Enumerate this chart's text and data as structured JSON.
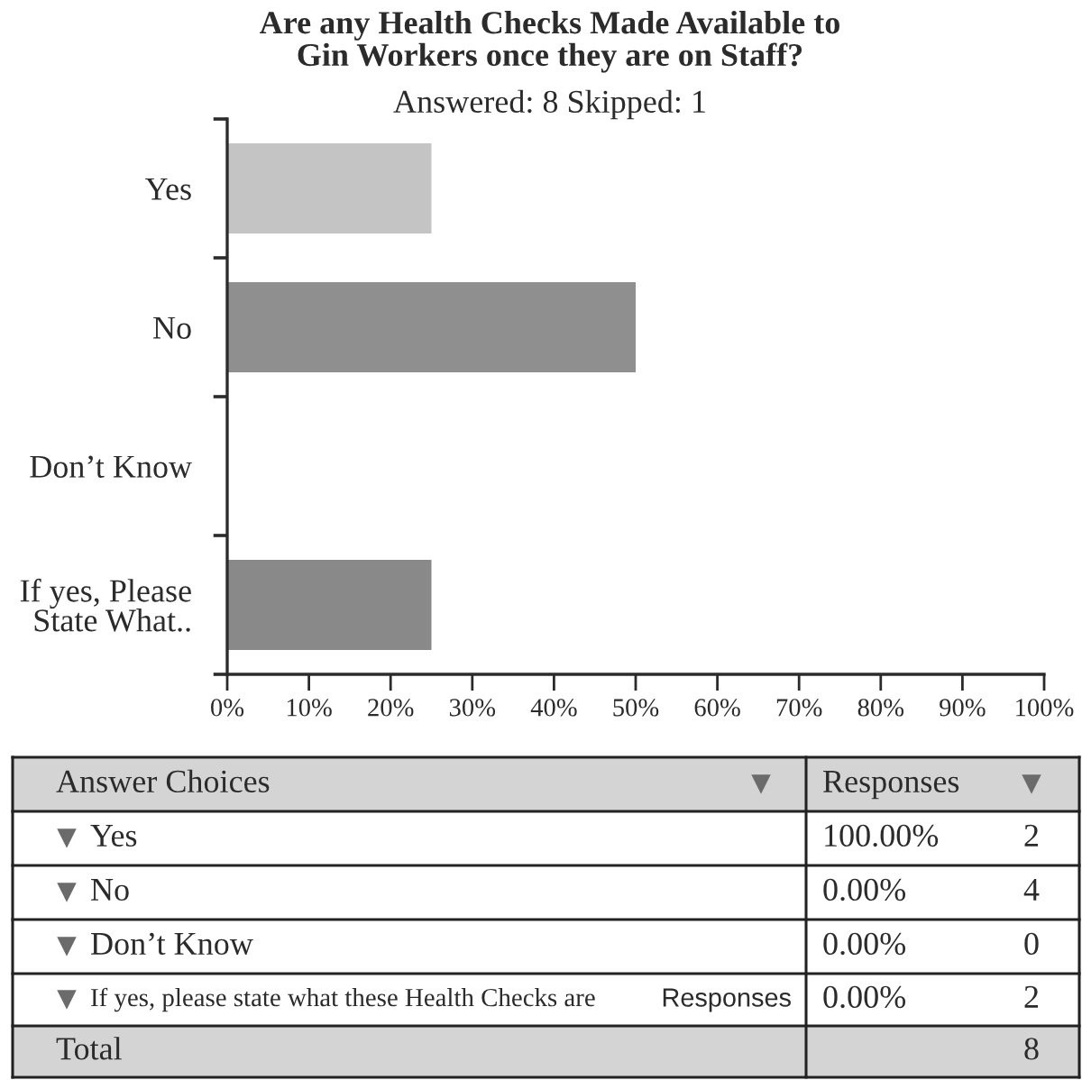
{
  "chart_data": {
    "type": "bar",
    "orientation": "horizontal",
    "title": "Are any Health Checks Made Available to\nGin Workers once they are on Staff?",
    "subtitle": "Answered: 8 Skipped: 1",
    "categories": [
      "Yes",
      "No",
      "Don’t Know",
      "If yes, Please\nState What.."
    ],
    "values": [
      25,
      50,
      0,
      25
    ],
    "colors": [
      "#c4c4c4",
      "#8f8f8f",
      "#8f8f8f",
      "#898989"
    ],
    "xlim": [
      0,
      100
    ],
    "xticks": [
      {
        "value": 0,
        "label": "0%"
      },
      {
        "value": 10,
        "label": "10%"
      },
      {
        "value": 20,
        "label": "20%"
      },
      {
        "value": 30,
        "label": "30%"
      },
      {
        "value": 40,
        "label": "40%"
      },
      {
        "value": 50,
        "label": "50%"
      },
      {
        "value": 60,
        "label": "60%"
      },
      {
        "value": 70,
        "label": "70%"
      },
      {
        "value": 80,
        "label": "80%"
      },
      {
        "value": 90,
        "label": "90%"
      },
      {
        "value": 100,
        "label": "100%"
      }
    ],
    "annotations": [
      "Answer Choices",
      "Responses",
      "Yes",
      "100.00%",
      "2",
      "No",
      "0.00%",
      "4",
      "Don’t Know",
      "0.00%",
      "0",
      "If yes, please state what these Health Checks are",
      "Responses",
      "0.00%",
      "2",
      "Total",
      "8"
    ]
  }
}
